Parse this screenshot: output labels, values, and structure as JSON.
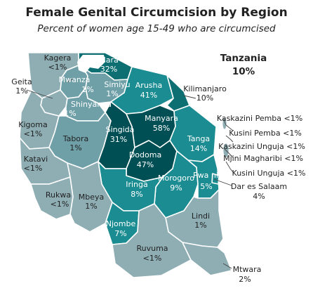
{
  "title": "Female Genital Circumcision by Region",
  "subtitle": "Percent of women age 15-49 who are circumcised",
  "country": {
    "name": "Tanzania",
    "value": "10%"
  },
  "colors": {
    "lowest": "#8eaeb4",
    "low": "#6fa0a8",
    "mid": "#1b8c92",
    "high": "#0e6f73",
    "highest": "#004f54",
    "border": "#ffffff",
    "coast": "#ffffff"
  },
  "regions": [
    {
      "id": "kagera",
      "name": "Kagera",
      "value": "<1%"
    },
    {
      "id": "mara",
      "name": "Mara",
      "value": "32%"
    },
    {
      "id": "geita",
      "name": "Geita",
      "value": "1%"
    },
    {
      "id": "mwanza",
      "name": "Mwanza",
      "value": "1%"
    },
    {
      "id": "simiyu",
      "name": "Simiyu",
      "value": "1%"
    },
    {
      "id": "shinyanga",
      "name": "Shinyanga",
      "value": "1%"
    },
    {
      "id": "arusha",
      "name": "Arusha",
      "value": "41%"
    },
    {
      "id": "kilimanjaro",
      "name": "Kilimanjaro",
      "value": "10%"
    },
    {
      "id": "kigoma",
      "name": "Kigoma",
      "value": "<1%"
    },
    {
      "id": "tabora",
      "name": "Tabora",
      "value": "1%"
    },
    {
      "id": "singida",
      "name": "Singida",
      "value": "31%"
    },
    {
      "id": "manyara",
      "name": "Manyara",
      "value": "58%"
    },
    {
      "id": "tanga",
      "name": "Tanga",
      "value": "14%"
    },
    {
      "id": "katavi",
      "name": "Katavi",
      "value": "<1%"
    },
    {
      "id": "dodoma",
      "name": "Dodoma",
      "value": "47%"
    },
    {
      "id": "morogoro",
      "name": "Morogoro",
      "value": "9%"
    },
    {
      "id": "pwani",
      "name": "Pwa ni",
      "value": "5%"
    },
    {
      "id": "iringa",
      "name": "Iringa",
      "value": "8%"
    },
    {
      "id": "rukwa",
      "name": "Rukwa",
      "value": "<1%"
    },
    {
      "id": "mbeya",
      "name": "Mbeya",
      "value": "1%"
    },
    {
      "id": "njombe",
      "name": "Njombe",
      "value": "7%"
    },
    {
      "id": "lindi",
      "name": "Lindi",
      "value": "1%"
    },
    {
      "id": "ruvuma",
      "name": "Ruvuma",
      "value": "<1%"
    },
    {
      "id": "mtwara",
      "name": "Mtwara",
      "value": "2%"
    },
    {
      "id": "dar",
      "name": "Dar es Salaam",
      "value": "4%"
    }
  ],
  "islands": [
    "Kaskazini Pemba <1%",
    "Kusini Pemba <1%",
    "Kaskazini Unguja <1%",
    "Mjini Magharibi <1%",
    "Kusini Unguja <1%"
  ]
}
